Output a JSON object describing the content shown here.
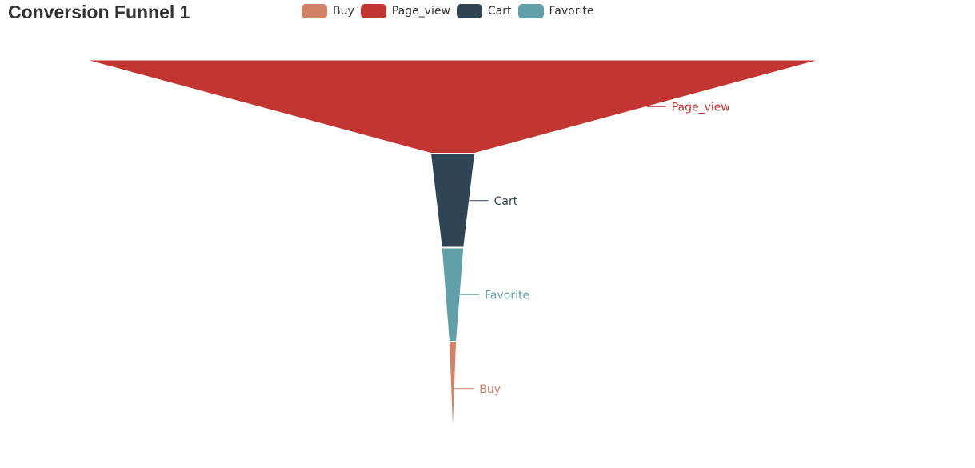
{
  "chart_data": {
    "type": "funnel",
    "title": "Conversion Funnel 1",
    "legend": [
      {
        "name": "Buy",
        "color": "#d48265"
      },
      {
        "name": "Page_view",
        "color": "#c23531"
      },
      {
        "name": "Cart",
        "color": "#2f4554"
      },
      {
        "name": "Favorite",
        "color": "#61a0a8"
      }
    ],
    "stages": [
      {
        "name": "Page_view",
        "value": 100,
        "color": "#c23531"
      },
      {
        "name": "Cart",
        "value": 6,
        "color": "#2f4554"
      },
      {
        "name": "Favorite",
        "value": 3,
        "color": "#61a0a8"
      },
      {
        "name": "Buy",
        "value": 1,
        "color": "#d48265"
      }
    ],
    "max_value": 100,
    "label_position": "right",
    "legend_position": "top"
  }
}
